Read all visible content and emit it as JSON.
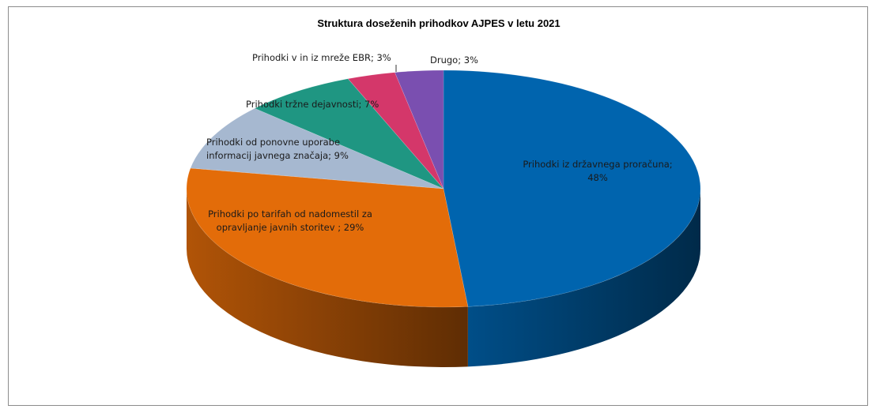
{
  "chart_data": {
    "type": "pie",
    "title": "Struktura doseženih prihodkov AJPES v letu 2021",
    "slices": [
      {
        "name": "Prihodki iz državnega proračuna",
        "value": 48,
        "label": [
          "Prihodki iz državnega proračuna;",
          "48%"
        ],
        "color": "#0064ae"
      },
      {
        "name": "Prihodki po tarifah od nadomestil za opravljanje javnih storitev",
        "value": 29,
        "label": [
          "Prihodki po tarifah od nadomestil za",
          "opravljanje javnih storitev ; 29%"
        ],
        "color": "#e36c09"
      },
      {
        "name": "Prihodki od ponovne uporabe informacij javnega značaja",
        "value": 9,
        "label": [
          "Prihodki od ponovne uporabe",
          "informacij javnega značaja; 9%"
        ],
        "color": "#a6b8d0"
      },
      {
        "name": "Prihodki tržne dejavnosti",
        "value": 7,
        "label": [
          "Prihodki tržne dejavnosti; 7%"
        ],
        "color": "#1f9682"
      },
      {
        "name": "Prihodki v in iz mreže EBR",
        "value": 3,
        "label": [
          "Prihodki v in iz mreže EBR; 3%"
        ],
        "color": "#d4376a"
      },
      {
        "name": "Drugo",
        "value": 3,
        "label": [
          "Drugo; 3%"
        ],
        "color": "#7a4fb0"
      }
    ],
    "legend": "none"
  }
}
